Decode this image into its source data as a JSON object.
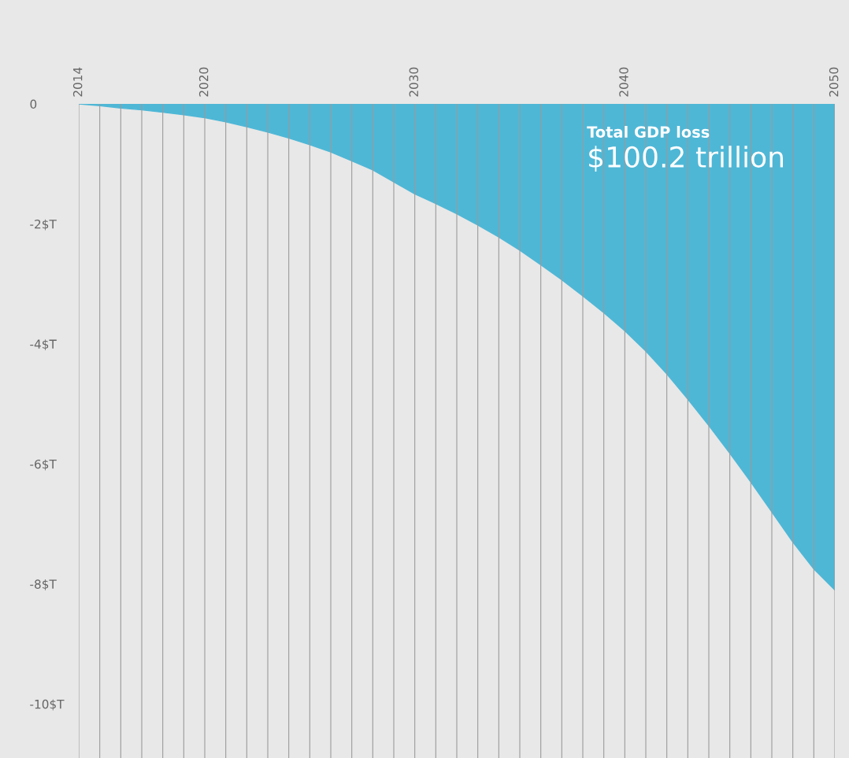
{
  "chart_data": {
    "type": "area",
    "x": [
      2014,
      2015,
      2016,
      2017,
      2018,
      2019,
      2020,
      2021,
      2022,
      2023,
      2024,
      2025,
      2026,
      2027,
      2028,
      2029,
      2030,
      2031,
      2032,
      2033,
      2034,
      2035,
      2036,
      2037,
      2038,
      2039,
      2040,
      2041,
      2042,
      2043,
      2044,
      2045,
      2046,
      2047,
      2048,
      2049,
      2050
    ],
    "series": [
      {
        "color": "#4fb7d6",
        "values": [
          0,
          -0.03,
          -0.07,
          -0.1,
          -0.14,
          -0.18,
          -0.23,
          -0.3,
          -0.38,
          -0.47,
          -0.57,
          -0.68,
          -0.8,
          -0.95,
          -1.1,
          -1.3,
          -1.5,
          -1.66,
          -1.83,
          -2.02,
          -2.22,
          -2.44,
          -2.68,
          -2.93,
          -3.2,
          -3.48,
          -3.78,
          -4.12,
          -4.5,
          -4.92,
          -5.36,
          -5.82,
          -6.3,
          -6.8,
          -7.3,
          -7.75,
          -8.1
        ]
      }
    ],
    "xlim": [
      2014,
      2050
    ],
    "xticks": [
      2014,
      {
        "value": 2015,
        "label": null
      },
      {
        "value": 2016,
        "label": null
      },
      {
        "value": 2017,
        "label": null
      },
      {
        "value": 2018,
        "label": null
      },
      {
        "value": 2019,
        "label": null
      },
      2020,
      {
        "value": 2021,
        "label": null
      },
      {
        "value": 2022,
        "label": null
      },
      {
        "value": 2023,
        "label": null
      },
      {
        "value": 2024,
        "label": null
      },
      {
        "value": 2025,
        "label": null
      },
      {
        "value": 2026,
        "label": null
      },
      {
        "value": 2027,
        "label": null
      },
      {
        "value": 2028,
        "label": null
      },
      {
        "value": 2029,
        "label": null
      },
      2030,
      {
        "value": 2031,
        "label": null
      },
      {
        "value": 2032,
        "label": null
      },
      {
        "value": 2033,
        "label": null
      },
      {
        "value": 2034,
        "label": null
      },
      {
        "value": 2035,
        "label": null
      },
      {
        "value": 2036,
        "label": null
      },
      {
        "value": 2037,
        "label": null
      },
      {
        "value": 2038,
        "label": null
      },
      {
        "value": 2039,
        "label": null
      },
      2040,
      {
        "value": 2041,
        "label": null
      },
      {
        "value": 2042,
        "label": null
      },
      {
        "value": 2043,
        "label": null
      },
      {
        "value": 2044,
        "label": null
      },
      {
        "value": 2045,
        "label": null
      },
      {
        "value": 2046,
        "label": null
      },
      {
        "value": 2047,
        "label": null
      },
      {
        "value": 2048,
        "label": null
      },
      {
        "value": 2049,
        "label": null
      },
      2050
    ],
    "ylim": [
      -10.9,
      0
    ],
    "yticks": [
      0,
      {
        "value": -2,
        "label": "-2$T"
      },
      {
        "value": -4,
        "label": "-4$T"
      },
      {
        "value": -6,
        "label": "-6$T"
      },
      {
        "value": -8,
        "label": "-8$T"
      },
      {
        "value": -10,
        "label": "-10$T"
      }
    ],
    "grid": "x",
    "annotations": [
      "Total GDP loss",
      "$100.2 trillion"
    ]
  }
}
